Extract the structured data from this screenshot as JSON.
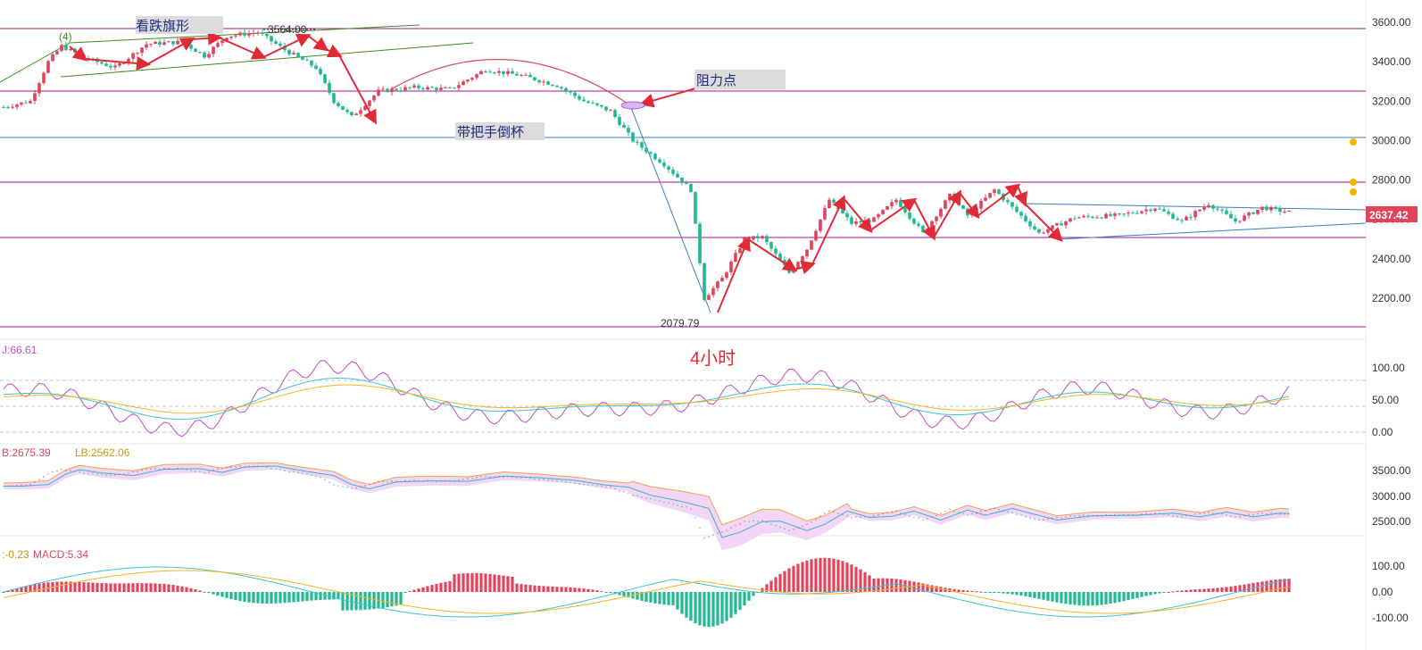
{
  "colors": {
    "up": "#e0435a",
    "down": "#1fb891",
    "arrow": "#e02a36",
    "purple_line": "#a1179b",
    "blue_line": "#3b7cc2",
    "green_line": "#3c8a1f",
    "current_price_bg": "#e0435a",
    "k_line": "#c24bc6",
    "d_line": "#3cc4d0",
    "j_line": "#f0b42a",
    "boll_fill": "#f3d6f6",
    "boll_upper": "#f0a24a",
    "boll_lower": "#c24bc6",
    "boll_mid": "#3cb0c8"
  },
  "main": {
    "timeframe_label": "4小时",
    "current_price": "2637.42",
    "low_label": "2079.79",
    "high_label": "3564.00",
    "wave_label": "(4)",
    "pattern_bear_flag": "看跌旗形",
    "pattern_cup": "带把手倒杯",
    "resistance": "阻力点",
    "right_axis": [
      "3600.00",
      "3400.00",
      "3200.00",
      "3000.00",
      "2800.00",
      "2600.00",
      "2400.00",
      "2200.00"
    ],
    "h_levels": [
      3575,
      3255,
      3020,
      2800,
      2525,
      2080
    ]
  },
  "kdj": {
    "label": "J:66.61",
    "axis": [
      "100.00",
      "50.00",
      "0.00"
    ]
  },
  "boll": {
    "label_ub": "B:2675.39",
    "label_lb": "LB:2562.06",
    "axis": [
      "3500.00",
      "3000.00",
      "2500.00"
    ]
  },
  "macd": {
    "label_a": ":-0.23",
    "label_b": "MACD:5.34",
    "axis": [
      "100.00",
      "0.00",
      "-100.00"
    ]
  },
  "chart_data": {
    "type": "candlestick",
    "title": "",
    "timeframe": "4小时",
    "ylim": [
      2050,
      3700
    ],
    "anchor_points": [
      {
        "i": 0,
        "price": 3170
      },
      {
        "i": 6,
        "price": 3200
      },
      {
        "i": 10,
        "price": 3400
      },
      {
        "i": 13,
        "price": 3480
      },
      {
        "i": 18,
        "price": 3420
      },
      {
        "i": 25,
        "price": 3370
      },
      {
        "i": 32,
        "price": 3490
      },
      {
        "i": 40,
        "price": 3500
      },
      {
        "i": 45,
        "price": 3430
      },
      {
        "i": 50,
        "price": 3530
      },
      {
        "i": 57,
        "price": 3550
      },
      {
        "i": 63,
        "price": 3460
      },
      {
        "i": 70,
        "price": 3370
      },
      {
        "i": 74,
        "price": 3200
      },
      {
        "i": 78,
        "price": 3120
      },
      {
        "i": 84,
        "price": 3250
      },
      {
        "i": 92,
        "price": 3270
      },
      {
        "i": 100,
        "price": 3260
      },
      {
        "i": 108,
        "price": 3360
      },
      {
        "i": 116,
        "price": 3330
      },
      {
        "i": 124,
        "price": 3280
      },
      {
        "i": 130,
        "price": 3200
      },
      {
        "i": 136,
        "price": 3150
      },
      {
        "i": 141,
        "price": 3000
      },
      {
        "i": 148,
        "price": 2880
      },
      {
        "i": 154,
        "price": 2750
      },
      {
        "i": 157,
        "price": 2200
      },
      {
        "i": 161,
        "price": 2300
      },
      {
        "i": 166,
        "price": 2500
      },
      {
        "i": 170,
        "price": 2510
      },
      {
        "i": 176,
        "price": 2330
      },
      {
        "i": 180,
        "price": 2450
      },
      {
        "i": 185,
        "price": 2700
      },
      {
        "i": 190,
        "price": 2580
      },
      {
        "i": 195,
        "price": 2600
      },
      {
        "i": 200,
        "price": 2700
      },
      {
        "i": 206,
        "price": 2530
      },
      {
        "i": 212,
        "price": 2720
      },
      {
        "i": 216,
        "price": 2620
      },
      {
        "i": 222,
        "price": 2750
      },
      {
        "i": 226,
        "price": 2660
      },
      {
        "i": 232,
        "price": 2530
      },
      {
        "i": 240,
        "price": 2610
      },
      {
        "i": 250,
        "price": 2620
      },
      {
        "i": 258,
        "price": 2660
      },
      {
        "i": 264,
        "price": 2590
      },
      {
        "i": 270,
        "price": 2680
      },
      {
        "i": 276,
        "price": 2590
      },
      {
        "i": 282,
        "price": 2660
      },
      {
        "i": 288,
        "price": 2637
      }
    ]
  }
}
